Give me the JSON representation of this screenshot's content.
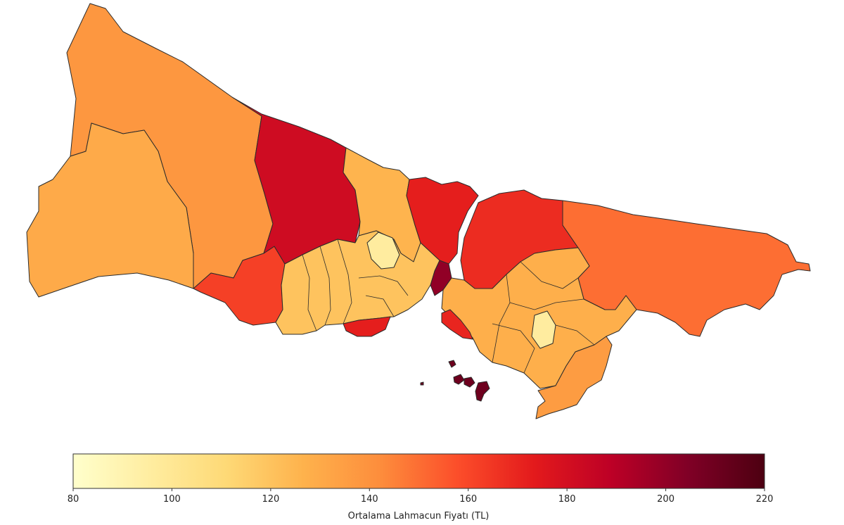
{
  "colorbar": {
    "label": "Ortalama Lahmacun Fiyatı (TL)",
    "min": 80,
    "max": 220,
    "ticks": [
      "80",
      "100",
      "120",
      "140",
      "160",
      "180",
      "200",
      "220"
    ],
    "colormap": "YlOrRd",
    "stops": [
      "#ffffcc",
      "#ffeda0",
      "#fed976",
      "#feb24c",
      "#fd8d3c",
      "#fc4e2a",
      "#e31a1c",
      "#bd0026",
      "#800026",
      "#4d0011"
    ]
  },
  "districts": [
    {
      "id": "catalca",
      "value": 138
    },
    {
      "id": "silivri",
      "value": 130
    },
    {
      "id": "buyukcekmece",
      "value": 162
    },
    {
      "id": "arnavutkoy",
      "value": 182
    },
    {
      "id": "eyupsultan",
      "value": 126
    },
    {
      "id": "sariyer",
      "value": 172
    },
    {
      "id": "beykoz",
      "value": 168
    },
    {
      "id": "sile",
      "value": 150
    },
    {
      "id": "besiktas",
      "value": 200
    },
    {
      "id": "kadikoy",
      "value": 170
    },
    {
      "id": "bakirkoy",
      "value": 172
    },
    {
      "id": "adalar",
      "value": 210
    },
    {
      "id": "sancaktepe",
      "value": 96
    },
    {
      "id": "european-core",
      "value": 120
    },
    {
      "id": "asian-core",
      "value": 128
    },
    {
      "id": "tuzla",
      "value": 136
    }
  ]
}
